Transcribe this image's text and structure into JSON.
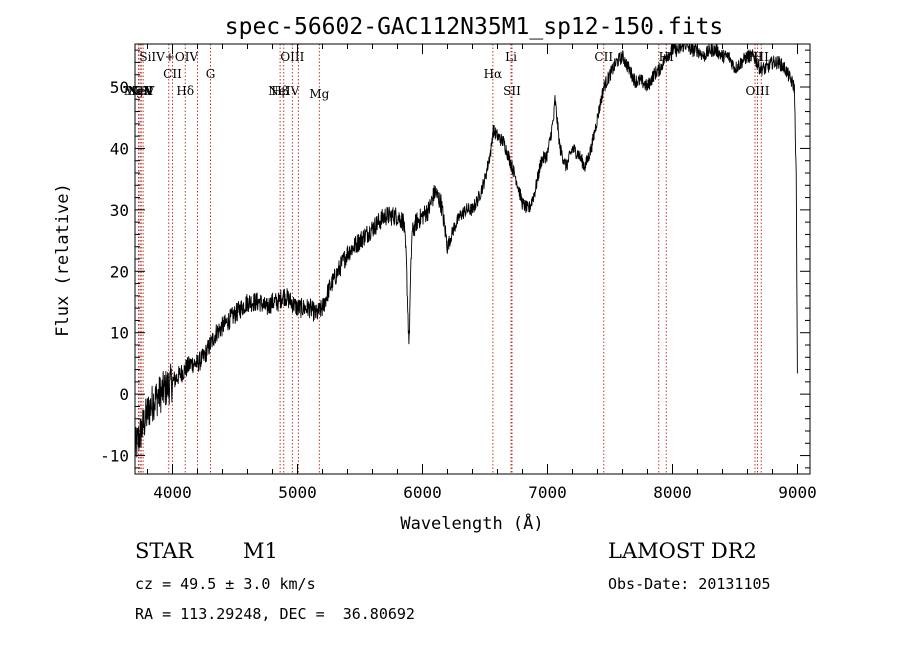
{
  "chart_data": {
    "type": "line",
    "title": "spec-56602-GAC112N35M1_sp12-150.fits",
    "xlabel": "Wavelength (Å)",
    "ylabel": "Flux (relative)",
    "xlim": [
      3700,
      9100
    ],
    "ylim": [
      -13,
      57
    ],
    "xticks": [
      4000,
      5000,
      6000,
      7000,
      8000,
      9000
    ],
    "yticks": [
      -10,
      0,
      10,
      20,
      30,
      40,
      50
    ],
    "grid": false,
    "series": [
      {
        "x": [
          3700,
          3750,
          3800,
          3850,
          3900,
          3950,
          4000,
          4050,
          4100,
          4150,
          4200,
          4250,
          4300,
          4350,
          4400,
          4450,
          4500,
          4550,
          4600,
          4650,
          4700,
          4750,
          4800,
          4850,
          4880,
          4900,
          4950,
          5000,
          5050,
          5100,
          5150,
          5200,
          5250,
          5300,
          5350,
          5400,
          5450,
          5500,
          5550,
          5600,
          5650,
          5700,
          5750,
          5800,
          5850,
          5870,
          5885,
          5893,
          5900,
          5915,
          5950,
          6000,
          6050,
          6100,
          6150,
          6200,
          6250,
          6300,
          6350,
          6400,
          6450,
          6500,
          6550,
          6563,
          6600,
          6650,
          6700,
          6750,
          6800,
          6850,
          6900,
          6950,
          7000,
          7050,
          7060,
          7100,
          7150,
          7200,
          7250,
          7300,
          7350,
          7400,
          7450,
          7500,
          7550,
          7600,
          7650,
          7700,
          7750,
          7800,
          7850,
          7900,
          7950,
          8000,
          8050,
          8100,
          8150,
          8200,
          8250,
          8300,
          8350,
          8400,
          8450,
          8500,
          8550,
          8600,
          8650,
          8700,
          8750,
          8800,
          8850,
          8900,
          8950,
          8975,
          8990,
          9000
        ],
        "y": [
          -9,
          -6,
          -3,
          -1,
          0,
          1,
          2,
          3,
          4,
          5,
          5,
          6,
          8,
          10,
          11,
          12,
          13,
          14,
          15,
          15,
          15,
          14,
          15,
          15,
          16,
          16,
          15,
          14,
          14,
          14,
          13,
          14,
          17,
          19,
          21,
          23,
          24,
          25,
          26,
          27,
          28,
          29,
          29,
          29,
          28,
          22,
          12,
          8,
          15,
          26,
          28,
          29,
          30,
          33,
          31,
          24,
          27,
          29,
          30,
          30,
          32,
          35,
          40,
          43,
          42,
          41,
          38,
          35,
          31,
          30,
          33,
          38,
          39,
          45,
          48,
          40,
          37,
          40,
          39,
          37,
          40,
          45,
          50,
          52,
          54,
          55,
          53,
          51,
          51,
          50,
          52,
          53,
          55,
          56,
          56,
          57,
          56,
          56,
          55,
          56,
          56,
          55,
          55,
          53,
          54,
          55,
          55,
          53,
          53,
          54,
          54,
          53,
          51,
          50,
          35,
          0
        ]
      }
    ],
    "lines": [
      {
        "x": 3728,
        "labels": [
          {
            "text": "MgII",
            "row": 3
          }
        ]
      },
      {
        "x": 3740,
        "labels": [
          {
            "text": "NeV",
            "row": 3
          }
        ]
      },
      {
        "x": 3750,
        "labels": [
          {
            "text": "NeV",
            "row": 3
          }
        ]
      },
      {
        "x": 3765,
        "labels": [
          {
            "text": "OII",
            "row": 3
          }
        ]
      },
      {
        "x": 3970,
        "labels": [
          {
            "text": "SiIV+OIV",
            "row": 1
          }
        ]
      },
      {
        "x": 4000,
        "labels": [
          {
            "text": "CII",
            "row": 2
          }
        ]
      },
      {
        "x": 4102,
        "labels": [
          {
            "text": "Hδ",
            "row": 3
          }
        ]
      },
      {
        "x": 4200,
        "labels": []
      },
      {
        "x": 4304,
        "labels": [
          {
            "text": "G",
            "row": 2
          }
        ]
      },
      {
        "x": 4861,
        "labels": [
          {
            "text": "Hβ",
            "row": 3
          }
        ]
      },
      {
        "x": 4890,
        "labels": [
          {
            "text": "NeIV",
            "row": 3
          }
        ]
      },
      {
        "x": 4959,
        "labels": [
          {
            "text": "OIII",
            "row": 1
          }
        ]
      },
      {
        "x": 5007,
        "labels": []
      },
      {
        "x": 5175,
        "labels": [
          {
            "text": "Mg",
            "row": 4
          }
        ]
      },
      {
        "x": 6563,
        "labels": [
          {
            "text": "Hα",
            "row": 2
          }
        ]
      },
      {
        "x": 6708,
        "labels": [
          {
            "text": "Li",
            "row": 1
          }
        ]
      },
      {
        "x": 6716,
        "labels": [
          {
            "text": "SII",
            "row": 3
          }
        ]
      },
      {
        "x": 7450,
        "labels": [
          {
            "text": "CII",
            "row": 1
          }
        ]
      },
      {
        "x": 7890,
        "labels": []
      },
      {
        "x": 7950,
        "labels": [
          {
            "text": "HI",
            "row": 1
          }
        ]
      },
      {
        "x": 8660,
        "labels": [
          {
            "text": "HI",
            "row": 1
          }
        ]
      },
      {
        "x": 8680,
        "labels": [
          {
            "text": "OIII",
            "row": 3
          }
        ]
      },
      {
        "x": 8710,
        "labels": [
          {
            "text": "HI",
            "row": 1
          }
        ]
      }
    ]
  },
  "footer": {
    "object_type": "STAR",
    "subclass": "M1",
    "survey": "LAMOST DR2",
    "cz": "cz = 49.5 ± 3.0 km/s",
    "obs_date": "Obs-Date: 20131105",
    "coords": "RA = 113.29248, DEC =  36.80692"
  }
}
